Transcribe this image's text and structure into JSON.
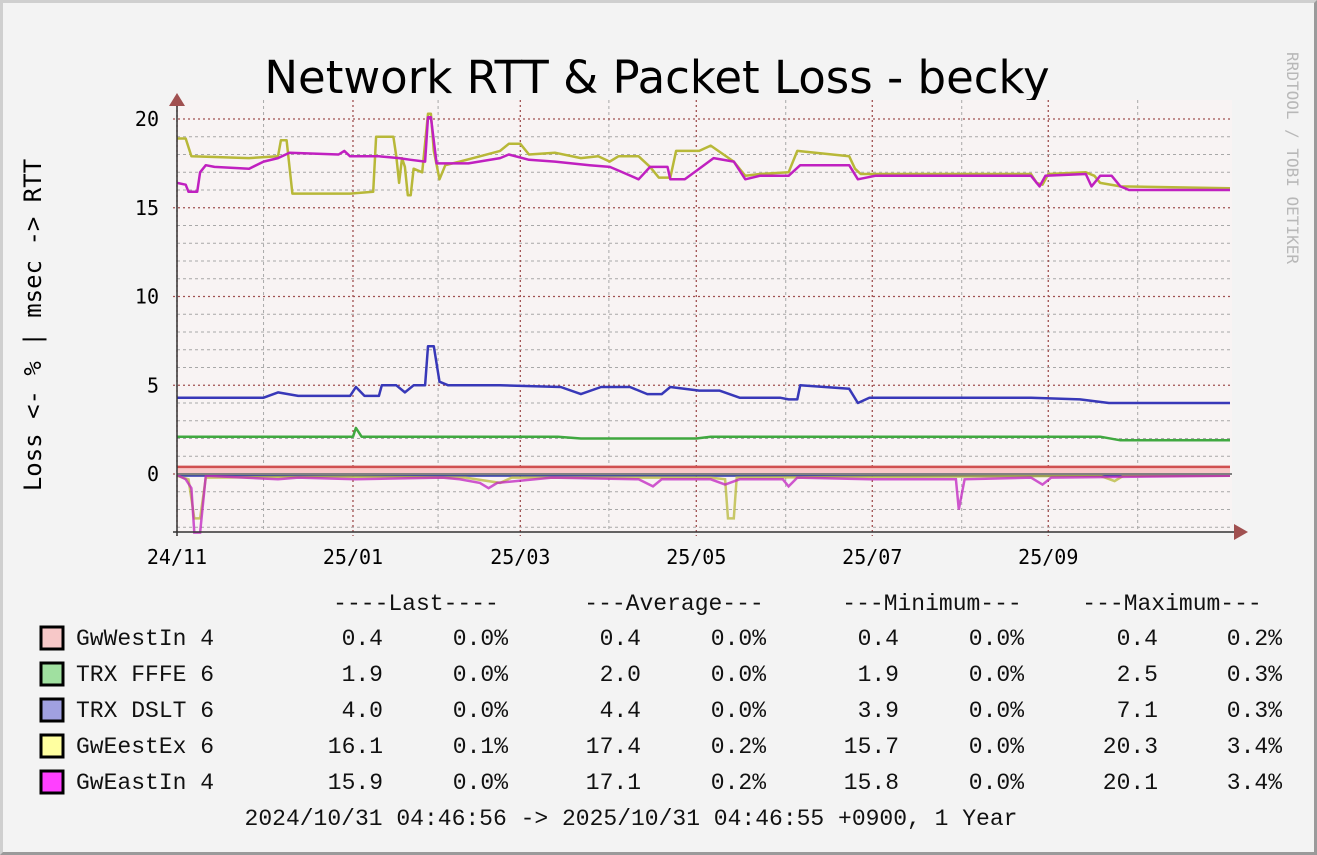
{
  "chart_data": {
    "type": "line",
    "title": "Network RTT & Packet Loss - becky",
    "ylabel": "Loss <- % | msec -> RTT",
    "watermark": "RRDTOOL / TOBI OETIKER",
    "xlabel": "",
    "xlim_days": [
      0,
      365
    ],
    "ylim": [
      -3.3,
      21
    ],
    "grid": true,
    "y_ticks": [
      {
        "value": 0,
        "label": "0"
      },
      {
        "value": 5,
        "label": "5"
      },
      {
        "value": 10,
        "label": "10"
      },
      {
        "value": 15,
        "label": "15"
      },
      {
        "value": 20,
        "label": "20"
      }
    ],
    "x_ticks": [
      {
        "day": 0,
        "label": "24/11"
      },
      {
        "day": 61,
        "label": "25/01"
      },
      {
        "day": 119,
        "label": "25/03"
      },
      {
        "day": 180,
        "label": "25/05"
      },
      {
        "day": 241,
        "label": "25/07"
      },
      {
        "day": 302,
        "label": "25/09"
      }
    ],
    "x_minor_days": [
      30,
      90.5,
      149.7,
      211,
      272,
      333
    ],
    "series": [
      {
        "name": "GwWestIn 4",
        "color": "#d05050",
        "swatch": "#f7c8c8",
        "fill": "#f8c8c8",
        "rtt": [
          [
            0,
            0.4
          ],
          [
            365,
            0.4
          ]
        ],
        "loss": [
          [
            0,
            -0.05
          ],
          [
            365,
            -0.05
          ]
        ]
      },
      {
        "name": "TRX FFFE 6",
        "color": "#40a840",
        "swatch": "#a0e0a0",
        "rtt": [
          [
            0,
            2.1
          ],
          [
            58,
            2.1
          ],
          [
            61,
            2.1
          ],
          [
            62,
            2.6
          ],
          [
            64,
            2.1
          ],
          [
            132,
            2.1
          ],
          [
            140,
            2.0
          ],
          [
            180,
            2.0
          ],
          [
            185,
            2.1
          ],
          [
            320,
            2.1
          ],
          [
            327,
            1.9
          ],
          [
            365,
            1.9
          ]
        ],
        "loss": [
          [
            0,
            -0.05
          ],
          [
            365,
            -0.05
          ]
        ]
      },
      {
        "name": "TRX DSLT 6",
        "color": "#3838b8",
        "swatch": "#a0a0e0",
        "rtt": [
          [
            0,
            4.3
          ],
          [
            30,
            4.3
          ],
          [
            35,
            4.6
          ],
          [
            42,
            4.4
          ],
          [
            60,
            4.4
          ],
          [
            62,
            4.9
          ],
          [
            65,
            4.4
          ],
          [
            70,
            4.4
          ],
          [
            71,
            5.0
          ],
          [
            76,
            5.0
          ],
          [
            79,
            4.6
          ],
          [
            82,
            5.0
          ],
          [
            86,
            5.0
          ],
          [
            87,
            7.2
          ],
          [
            89,
            7.2
          ],
          [
            91,
            5.2
          ],
          [
            94,
            5.0
          ],
          [
            112,
            5.0
          ],
          [
            133,
            4.9
          ],
          [
            140,
            4.5
          ],
          [
            147,
            4.9
          ],
          [
            157,
            4.9
          ],
          [
            163,
            4.5
          ],
          [
            168,
            4.5
          ],
          [
            171,
            4.9
          ],
          [
            181,
            4.7
          ],
          [
            188,
            4.7
          ],
          [
            195,
            4.3
          ],
          [
            209,
            4.3
          ],
          [
            212,
            4.2
          ],
          [
            215,
            4.2
          ],
          [
            216,
            5.0
          ],
          [
            233,
            4.8
          ],
          [
            236,
            4.0
          ],
          [
            240,
            4.3
          ],
          [
            296,
            4.3
          ],
          [
            313,
            4.2
          ],
          [
            323,
            4.0
          ],
          [
            365,
            4.0
          ]
        ],
        "loss": [
          [
            0,
            -0.1
          ],
          [
            365,
            -0.1
          ]
        ]
      },
      {
        "name": "GwEestEx 6",
        "color": "#b8b838",
        "swatch": "#ffffa0",
        "rtt": [
          [
            0,
            18.9
          ],
          [
            3,
            18.9
          ],
          [
            5,
            17.9
          ],
          [
            25,
            17.8
          ],
          [
            35,
            17.9
          ],
          [
            36,
            18.8
          ],
          [
            38,
            18.8
          ],
          [
            40,
            15.8
          ],
          [
            60,
            15.8
          ],
          [
            68,
            15.9
          ],
          [
            69,
            19.0
          ],
          [
            75,
            19.0
          ],
          [
            76,
            17.9
          ],
          [
            77,
            16.4
          ],
          [
            78,
            17.8
          ],
          [
            79,
            17.3
          ],
          [
            80,
            15.7
          ],
          [
            81,
            15.7
          ],
          [
            82,
            17.2
          ],
          [
            85,
            17.0
          ],
          [
            87,
            20.3
          ],
          [
            88,
            20.3
          ],
          [
            89,
            18.2
          ],
          [
            91,
            16.6
          ],
          [
            93,
            17.4
          ],
          [
            98,
            17.6
          ],
          [
            105,
            17.9
          ],
          [
            112,
            18.2
          ],
          [
            115,
            18.6
          ],
          [
            119,
            18.6
          ],
          [
            122,
            18.0
          ],
          [
            131,
            18.1
          ],
          [
            140,
            17.8
          ],
          [
            146,
            17.9
          ],
          [
            150,
            17.6
          ],
          [
            153,
            17.9
          ],
          [
            160,
            17.9
          ],
          [
            164,
            17.3
          ],
          [
            167,
            16.7
          ],
          [
            171,
            16.7
          ],
          [
            173,
            18.2
          ],
          [
            181,
            18.2
          ],
          [
            185,
            18.5
          ],
          [
            193,
            17.6
          ],
          [
            197,
            16.8
          ],
          [
            202,
            16.9
          ],
          [
            212,
            17.0
          ],
          [
            215,
            18.2
          ],
          [
            233,
            17.9
          ],
          [
            235,
            17.2
          ],
          [
            237,
            16.9
          ],
          [
            296,
            16.9
          ],
          [
            298,
            16.4
          ],
          [
            300,
            16.3
          ],
          [
            302,
            16.9
          ],
          [
            315,
            17.0
          ],
          [
            318,
            16.8
          ],
          [
            320,
            16.4
          ],
          [
            327,
            16.2
          ],
          [
            365,
            16.1
          ]
        ],
        "loss": [
          [
            0,
            -0.1
          ],
          [
            4,
            -0.3
          ],
          [
            6,
            -2.5
          ],
          [
            8,
            -2.5
          ],
          [
            10,
            -0.2
          ],
          [
            60,
            -0.15
          ],
          [
            100,
            -0.2
          ],
          [
            112,
            -0.5
          ],
          [
            116,
            -0.2
          ],
          [
            185,
            -0.2
          ],
          [
            190,
            -0.3
          ],
          [
            191,
            -2.5
          ],
          [
            193,
            -2.5
          ],
          [
            194,
            -0.2
          ],
          [
            320,
            -0.1
          ],
          [
            325,
            -0.4
          ],
          [
            328,
            -0.1
          ],
          [
            365,
            -0.1
          ]
        ]
      },
      {
        "name": "GwEastIn 4",
        "color": "#c020c0",
        "swatch": "#ff40ff",
        "rtt": [
          [
            0,
            16.4
          ],
          [
            3,
            16.3
          ],
          [
            4,
            15.9
          ],
          [
            7,
            15.9
          ],
          [
            8,
            17.0
          ],
          [
            10,
            17.4
          ],
          [
            13,
            17.3
          ],
          [
            25,
            17.2
          ],
          [
            30,
            17.6
          ],
          [
            35,
            17.8
          ],
          [
            39,
            18.1
          ],
          [
            56,
            18.0
          ],
          [
            58,
            18.2
          ],
          [
            60,
            17.9
          ],
          [
            70,
            17.9
          ],
          [
            77,
            17.8
          ],
          [
            81,
            17.7
          ],
          [
            86,
            17.6
          ],
          [
            87,
            20.1
          ],
          [
            88,
            20.1
          ],
          [
            90,
            17.5
          ],
          [
            101,
            17.5
          ],
          [
            112,
            17.8
          ],
          [
            115,
            18.0
          ],
          [
            122,
            17.7
          ],
          [
            131,
            17.6
          ],
          [
            143,
            17.4
          ],
          [
            150,
            17.3
          ],
          [
            153,
            17.1
          ],
          [
            160,
            16.6
          ],
          [
            164,
            17.3
          ],
          [
            170,
            17.3
          ],
          [
            171,
            16.6
          ],
          [
            176,
            16.6
          ],
          [
            181,
            17.2
          ],
          [
            186,
            17.8
          ],
          [
            193,
            17.6
          ],
          [
            197,
            16.6
          ],
          [
            202,
            16.8
          ],
          [
            212,
            16.8
          ],
          [
            216,
            17.4
          ],
          [
            233,
            17.4
          ],
          [
            236,
            16.6
          ],
          [
            242,
            16.8
          ],
          [
            296,
            16.8
          ],
          [
            299,
            16.2
          ],
          [
            301,
            16.8
          ],
          [
            315,
            16.9
          ],
          [
            317,
            16.2
          ],
          [
            320,
            16.8
          ],
          [
            324,
            16.8
          ],
          [
            327,
            16.2
          ],
          [
            330,
            16.0
          ],
          [
            365,
            16.0
          ]
        ],
        "loss": [
          [
            0,
            -0.05
          ],
          [
            3,
            -0.3
          ],
          [
            5,
            -0.8
          ],
          [
            6,
            -3.3
          ],
          [
            8,
            -3.3
          ],
          [
            10,
            -0.1
          ],
          [
            35,
            -0.3
          ],
          [
            42,
            -0.2
          ],
          [
            62,
            -0.3
          ],
          [
            92,
            -0.2
          ],
          [
            98,
            -0.3
          ],
          [
            105,
            -0.5
          ],
          [
            108,
            -0.8
          ],
          [
            111,
            -0.5
          ],
          [
            130,
            -0.2
          ],
          [
            160,
            -0.3
          ],
          [
            165,
            -0.7
          ],
          [
            168,
            -0.3
          ],
          [
            175,
            -0.3
          ],
          [
            185,
            -0.3
          ],
          [
            190,
            -0.6
          ],
          [
            195,
            -0.3
          ],
          [
            210,
            -0.3
          ],
          [
            212,
            -0.7
          ],
          [
            215,
            -0.2
          ],
          [
            240,
            -0.3
          ],
          [
            270,
            -0.3
          ],
          [
            271,
            -2.0
          ],
          [
            273,
            -0.3
          ],
          [
            296,
            -0.2
          ],
          [
            300,
            -0.6
          ],
          [
            303,
            -0.2
          ],
          [
            365,
            -0.1
          ]
        ]
      }
    ]
  },
  "legend": {
    "headers": [
      "----Last----",
      "---Average---",
      "---Minimum---",
      "---Maximum---"
    ],
    "rows": [
      {
        "name": "GwWestIn 4",
        "last": "0.4",
        "last_loss": "0.0%",
        "avg": "0.4",
        "avg_loss": "0.0%",
        "min": "0.4",
        "min_loss": "0.0%",
        "max": "0.4",
        "max_loss": "0.2%"
      },
      {
        "name": "TRX FFFE 6",
        "last": "1.9",
        "last_loss": "0.0%",
        "avg": "2.0",
        "avg_loss": "0.0%",
        "min": "1.9",
        "min_loss": "0.0%",
        "max": "2.5",
        "max_loss": "0.3%"
      },
      {
        "name": "TRX DSLT 6",
        "last": "4.0",
        "last_loss": "0.0%",
        "avg": "4.4",
        "avg_loss": "0.0%",
        "min": "3.9",
        "min_loss": "0.0%",
        "max": "7.1",
        "max_loss": "0.3%"
      },
      {
        "name": "GwEestEx 6",
        "last": "16.1",
        "last_loss": "0.1%",
        "avg": "17.4",
        "avg_loss": "0.2%",
        "min": "15.7",
        "min_loss": "0.0%",
        "max": "20.3",
        "max_loss": "3.4%"
      },
      {
        "name": "GwEastIn 4",
        "last": "15.9",
        "last_loss": "0.0%",
        "avg": "17.1",
        "avg_loss": "0.2%",
        "min": "15.8",
        "min_loss": "0.0%",
        "max": "20.1",
        "max_loss": "3.4%"
      }
    ],
    "footer": "2024/10/31 04:46:56 -> 2025/10/31 04:46:55 +0900, 1 Year"
  }
}
